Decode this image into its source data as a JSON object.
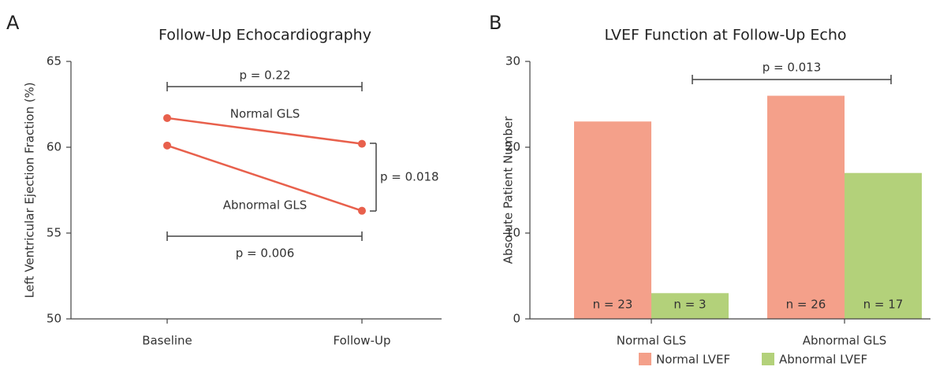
{
  "chart_data": [
    {
      "type": "line",
      "panel": "A",
      "title": "Follow-Up Echocardiography",
      "y_label": "Left Ventricular Ejection Fraction (%)",
      "categories": [
        "Baseline",
        "Follow-Up"
      ],
      "series": [
        {
          "name": "Normal GLS",
          "color": "#e8604c",
          "values": [
            61.7,
            60.2
          ]
        },
        {
          "name": "Abnormal GLS",
          "color": "#e8604c",
          "values": [
            60.1,
            56.3
          ]
        }
      ],
      "ylim": [
        50,
        65
      ],
      "yticks": [
        50,
        55,
        60,
        65
      ],
      "annotations": [
        "p = 0.22",
        "p = 0.006",
        "p = 0.018"
      ]
    },
    {
      "type": "bar",
      "panel": "B",
      "title": "LVEF Function at Follow-Up Echo",
      "y_label": "Absolute Patient Number",
      "categories": [
        "Normal GLS",
        "Abnormal GLS"
      ],
      "series": [
        {
          "name": "Normal LVEF",
          "color": "#f4a08a",
          "values": [
            23,
            26
          ],
          "value_labels": [
            "n = 23",
            "n = 26"
          ]
        },
        {
          "name": "Abnormal LVEF",
          "color": "#b3d17a",
          "values": [
            3,
            17
          ],
          "value_labels": [
            "n = 3",
            "n = 17"
          ]
        }
      ],
      "ylim": [
        0,
        30
      ],
      "yticks": [
        0,
        10,
        20,
        30
      ],
      "annotations": [
        "p = 0.013"
      ],
      "legend": "bottom"
    }
  ]
}
